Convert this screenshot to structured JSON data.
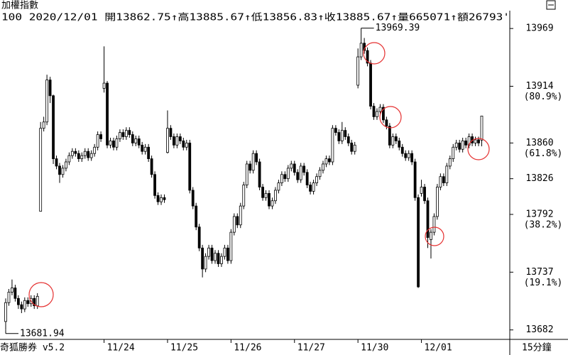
{
  "chart_data": {
    "type": "candlestick",
    "title": "加權指數",
    "subtitle": "100 2020/12/01 開13862.75↑高13885.67↑低13856.83↑收13885.67↑量665071↑額26793'",
    "footer_left": "奇狐勝券 v5.2",
    "footer_right": "15分鐘",
    "up_color": "#ffffff",
    "down_color": "#000000",
    "ylim": [
      13673,
      13986
    ],
    "yticks": [
      13969,
      13914,
      13860,
      13826,
      13792,
      13737,
      13682
    ],
    "ytick_notes": [
      {
        "value": 13914,
        "label": "(80.9%)"
      },
      {
        "value": 13860,
        "label": "(61.8%)"
      },
      {
        "value": 13792,
        "label": "(38.2%)"
      },
      {
        "value": 13737,
        "label": "(19.1%)"
      }
    ],
    "xlim": [
      -1.79,
      158.84
    ],
    "xticks": [
      {
        "value": 31,
        "label": "11/24"
      },
      {
        "value": 51,
        "label": "11/25"
      },
      {
        "value": 71,
        "label": "11/26"
      },
      {
        "value": 91,
        "label": "11/27"
      },
      {
        "value": 111,
        "label": "11/30"
      },
      {
        "value": 131,
        "label": "12/01"
      }
    ],
    "annotations": [
      {
        "text": "13969.39",
        "value": 13969.39
      },
      {
        "text": "13681.94",
        "value": 13681.94
      }
    ],
    "open": [
      13690,
      13708,
      13718,
      13722,
      13712,
      13706,
      13702,
      13710,
      13707,
      13712,
      13705,
      13795,
      13874,
      13880,
      13920,
      13905,
      13845,
      13838,
      13830,
      13836,
      13842,
      13848,
      13852,
      13850,
      13845,
      13848,
      13852,
      13846,
      13850,
      13856,
      13868,
      13912,
      13917,
      13858,
      13862,
      13856,
      13864,
      13870,
      13866,
      13872,
      13868,
      13860,
      13864,
      13858,
      13852,
      13856,
      13845,
      13830,
      13810,
      13804,
      13808,
      13851,
      13874,
      13866,
      13858,
      13866,
      13862,
      13856,
      13860,
      13815,
      13800,
      13780,
      13760,
      13740,
      13752,
      13760,
      13748,
      13755,
      13745,
      13752,
      13760,
      13748,
      13775,
      13790,
      13782,
      13800,
      13820,
      13840,
      13834,
      13850,
      13842,
      13818,
      13808,
      13812,
      13800,
      13805,
      13815,
      13822,
      13830,
      13826,
      13836,
      13840,
      13832,
      13825,
      13838,
      13832,
      13820,
      13814,
      13822,
      13828,
      13834,
      13840,
      13845,
      13842,
      13874,
      13870,
      13862,
      13872,
      13866,
      13860,
      13852,
      13915,
      13942,
      13955,
      13948,
      13936,
      13895,
      13885,
      13890,
      13894,
      13882,
      13876,
      13858,
      13866,
      13862,
      13856,
      13850,
      13846,
      13850,
      13842,
      13808,
      13812,
      13818,
      13805,
      13768,
      13775,
      13790,
      13818,
      13828,
      13822,
      13838,
      13845,
      13856,
      13860,
      13854,
      13862,
      13858,
      13866,
      13860,
      13863,
      13862.75
    ],
    "high": [
      13712,
      13721,
      13730,
      13725,
      13715,
      13709,
      13713,
      13713,
      13715,
      13715,
      13717,
      13880,
      13885,
      13925,
      13923,
      13906,
      13848,
      13841,
      13839,
      13845,
      13851,
      13855,
      13855,
      13853,
      13851,
      13855,
      13855,
      13853,
      13859,
      13871,
      13871,
      13952,
      13919,
      13865,
      13865,
      13867,
      13873,
      13873,
      13875,
      13875,
      13871,
      13867,
      13867,
      13861,
      13859,
      13859,
      13848,
      13833,
      13813,
      13811,
      13811,
      13891,
      13877,
      13869,
      13869,
      13869,
      13865,
      13863,
      13863,
      13818,
      13803,
      13783,
      13763,
      13755,
      13763,
      13763,
      13758,
      13758,
      13755,
      13763,
      13763,
      13778,
      13793,
      13793,
      13803,
      13823,
      13843,
      13843,
      13853,
      13853,
      13845,
      13821,
      13815,
      13815,
      13808,
      13818,
      13825,
      13833,
      13833,
      13839,
      13843,
      13843,
      13835,
      13841,
      13841,
      13835,
      13823,
      13825,
      13831,
      13837,
      13843,
      13848,
      13848,
      13877,
      13877,
      13873,
      13880,
      13875,
      13869,
      13863,
      13861,
      13950,
      13969.39,
      13960,
      13951,
      13939,
      13898,
      13893,
      13897,
      13897,
      13885,
      13879,
      13869,
      13869,
      13865,
      13859,
      13853,
      13853,
      13853,
      13845,
      13811,
      13825,
      13821,
      13808,
      13778,
      13793,
      13821,
      13831,
      13831,
      13841,
      13848,
      13859,
      13863,
      13863,
      13865,
      13865,
      13869,
      13869,
      13866,
      13866,
      13885.67
    ],
    "low": [
      13681.94,
      13705,
      13715,
      13709,
      13702,
      13698,
      13699,
      13704,
      13704,
      13702,
      13702,
      13795,
      13871,
      13877,
      13898,
      13840,
      13835,
      13822,
      13827,
      13833,
      13839,
      13845,
      13847,
      13842,
      13842,
      13845,
      13843,
      13843,
      13847,
      13853,
      13861,
      13908,
      13855,
      13855,
      13853,
      13853,
      13861,
      13863,
      13863,
      13865,
      13857,
      13857,
      13855,
      13849,
      13849,
      13842,
      13827,
      13807,
      13801,
      13801,
      13803,
      13850,
      13863,
      13855,
      13855,
      13859,
      13853,
      13853,
      13812,
      13797,
      13777,
      13757,
      13732,
      13737,
      13749,
      13745,
      13745,
      13742,
      13742,
      13749,
      13745,
      13745,
      13772,
      13779,
      13779,
      13797,
      13817,
      13831,
      13831,
      13839,
      13815,
      13805,
      13805,
      13797,
      13797,
      13802,
      13812,
      13819,
      13823,
      13823,
      13833,
      13829,
      13822,
      13822,
      13829,
      13817,
      13811,
      13811,
      13819,
      13825,
      13831,
      13837,
      13839,
      13839,
      13867,
      13859,
      13859,
      13863,
      13857,
      13849,
      13849,
      13912,
      13939,
      13945,
      13933,
      13892,
      13882,
      13882,
      13887,
      13879,
      13873,
      13855,
      13855,
      13859,
      13853,
      13847,
      13843,
      13843,
      13839,
      13805,
      13722,
      13809,
      13802,
      13760,
      13750,
      13772,
      13787,
      13815,
      13819,
      13819,
      13835,
      13842,
      13853,
      13851,
      13851,
      13855,
      13855,
      13857,
      13857,
      13857,
      13856.83
    ],
    "close": [
      13708,
      13718,
      13722,
      13712,
      13706,
      13702,
      13710,
      13707,
      13712,
      13705,
      13714,
      13874,
      13880,
      13920,
      13905,
      13845,
      13838,
      13830,
      13836,
      13842,
      13848,
      13852,
      13850,
      13845,
      13848,
      13852,
      13846,
      13850,
      13856,
      13868,
      13864,
      13917,
      13858,
      13862,
      13856,
      13864,
      13870,
      13866,
      13872,
      13868,
      13860,
      13864,
      13858,
      13852,
      13856,
      13845,
      13830,
      13810,
      13804,
      13808,
      13806,
      13874,
      13866,
      13858,
      13866,
      13862,
      13856,
      13860,
      13815,
      13800,
      13780,
      13760,
      13740,
      13752,
      13760,
      13748,
      13755,
      13745,
      13752,
      13760,
      13748,
      13775,
      13790,
      13782,
      13800,
      13820,
      13840,
      13834,
      13850,
      13842,
      13818,
      13808,
      13812,
      13800,
      13805,
      13815,
      13822,
      13830,
      13826,
      13836,
      13840,
      13832,
      13825,
      13838,
      13832,
      13820,
      13814,
      13822,
      13828,
      13834,
      13840,
      13845,
      13842,
      13874,
      13870,
      13862,
      13872,
      13866,
      13860,
      13852,
      13858,
      13942,
      13955,
      13948,
      13936,
      13895,
      13885,
      13890,
      13894,
      13882,
      13876,
      13858,
      13866,
      13862,
      13856,
      13850,
      13846,
      13850,
      13842,
      13808,
      13723,
      13818,
      13805,
      13770,
      13775,
      13790,
      13818,
      13828,
      13822,
      13838,
      13845,
      13856,
      13860,
      13854,
      13862,
      13858,
      13866,
      13860,
      13863,
      13860,
      13885.67
    ]
  }
}
